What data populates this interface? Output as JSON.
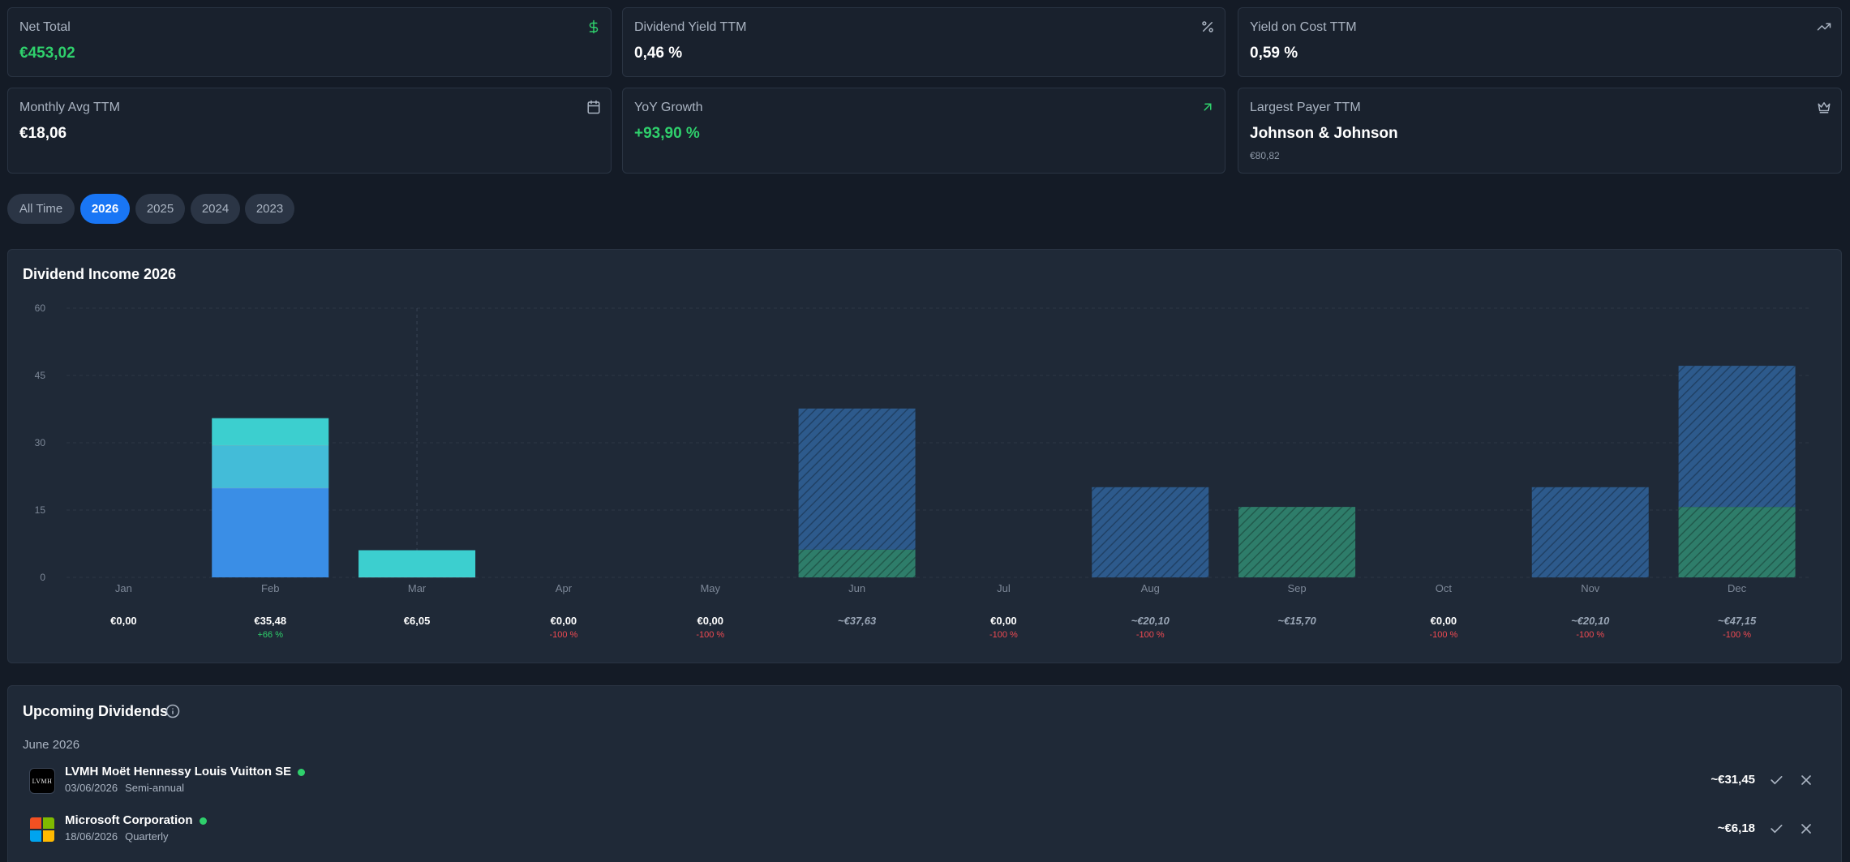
{
  "stats": [
    {
      "label": "Net Total",
      "value": "€453,02",
      "icon": "dollar-icon",
      "value_color": "#2fd06c"
    },
    {
      "label": "Dividend Yield TTM",
      "value": "0,46 %",
      "icon": "percent-icon"
    },
    {
      "label": "Yield on Cost TTM",
      "value": "0,59 %",
      "icon": "trending-up-icon"
    },
    {
      "label": "Monthly Avg TTM",
      "value": "€18,06",
      "icon": "calendar-icon"
    },
    {
      "label": "YoY Growth",
      "value": "+93,90 %",
      "icon": "arrow-up-right-icon",
      "value_color": "#2fd06c"
    },
    {
      "label": "Largest Payer TTM",
      "value": "Johnson & Johnson",
      "sub": "€80,82",
      "icon": "crown-icon"
    }
  ],
  "filters": {
    "options": [
      "All Time",
      "2026",
      "2025",
      "2024",
      "2023"
    ],
    "selected": "2026"
  },
  "chart": {
    "title": "Dividend Income 2026",
    "summaries": [
      {
        "amount": "€0,00",
        "change": "",
        "estimated": false
      },
      {
        "amount": "€35,48",
        "change": "+66 %",
        "estimated": false
      },
      {
        "amount": "€6,05",
        "change": "",
        "estimated": false
      },
      {
        "amount": "€0,00",
        "change": "-100 %",
        "estimated": false
      },
      {
        "amount": "€0,00",
        "change": "-100 %",
        "estimated": false
      },
      {
        "amount": "~€37,63",
        "change": "",
        "estimated": true
      },
      {
        "amount": "€0,00",
        "change": "-100 %",
        "estimated": false
      },
      {
        "amount": "~€20,10",
        "change": "-100 %",
        "estimated": true
      },
      {
        "amount": "~€15,70",
        "change": "",
        "estimated": true
      },
      {
        "amount": "€0,00",
        "change": "-100 %",
        "estimated": false
      },
      {
        "amount": "~€20,10",
        "change": "-100 %",
        "estimated": true
      },
      {
        "amount": "~€47,15",
        "change": "-100 %",
        "estimated": true
      }
    ]
  },
  "chart_data": {
    "type": "bar",
    "title": "Dividend Income 2026",
    "categories": [
      "Jan",
      "Feb",
      "Mar",
      "Apr",
      "May",
      "Jun",
      "Jul",
      "Aug",
      "Sep",
      "Oct",
      "Nov",
      "Dec"
    ],
    "yticks": [
      0,
      15,
      30,
      45,
      60
    ],
    "ylim": [
      0,
      60
    ],
    "grid": true,
    "current_month": "Mar",
    "stacked": true,
    "series": [
      {
        "values": [
          0,
          19.9,
          0,
          0,
          0,
          0,
          0,
          0,
          0,
          0,
          0,
          0
        ],
        "color": "#3a8ee6",
        "estimated": false
      },
      {
        "values": [
          0,
          9.5,
          0,
          0,
          0,
          0,
          0,
          0,
          0,
          0,
          0,
          0
        ],
        "color": "#43bcd8",
        "estimated": false
      },
      {
        "values": [
          0,
          6.08,
          6.05,
          0,
          0,
          0,
          0,
          0,
          0,
          0,
          0,
          0
        ],
        "color": "#3ccfcf",
        "estimated": false
      },
      {
        "values": [
          0,
          0,
          0,
          0,
          0,
          6.18,
          0,
          0,
          15.7,
          0,
          0,
          15.7
        ],
        "color": "#2e7d6a",
        "estimated": true
      },
      {
        "values": [
          0,
          0,
          0,
          0,
          0,
          31.45,
          0,
          20.1,
          0,
          0,
          20.1,
          31.45
        ],
        "color": "#2d5a8c",
        "estimated": true
      }
    ]
  },
  "upcoming": {
    "title": "Upcoming Dividends",
    "info_icon": "info-icon",
    "month": "June 2026",
    "items": [
      {
        "name": "LVMH Moët Hennessy Louis Vuitton SE",
        "logo_text": "LVMH",
        "date": "03/06/2026",
        "frequency": "Semi-annual",
        "amount": "~€31,45"
      },
      {
        "name": "Microsoft Corporation",
        "logo_text": "",
        "date": "18/06/2026",
        "frequency": "Quarterly",
        "amount": "~€6,18"
      }
    ]
  }
}
